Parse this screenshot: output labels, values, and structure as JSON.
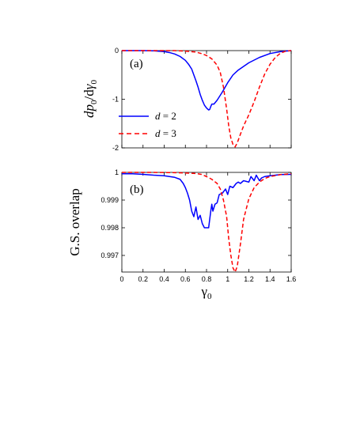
{
  "chart_data": [
    {
      "type": "line",
      "panel_label": "(a)",
      "ylabel_main": "dp",
      "ylabel_sub0": "0",
      "ylabel_mid": "/d",
      "ylabel_gamma": "γ",
      "ylabel_sub1": "0",
      "xlim": [
        0,
        1.6
      ],
      "ylim": [
        -2,
        0
      ],
      "x_ticks": [
        0,
        0.2,
        0.4,
        0.6,
        0.8,
        1,
        1.2,
        1.4,
        1.6
      ],
      "x_tick_labels": [],
      "y_ticks": [
        0,
        -1,
        -2
      ],
      "y_tick_labels": [
        "0",
        "-1",
        "-2"
      ],
      "legend_position": "lower-left",
      "series": [
        {
          "name": "d = 2",
          "legend_var": "d",
          "legend_rest": " = 2",
          "color": "#0000ff",
          "style": "solid",
          "x": [
            0,
            0.1,
            0.2,
            0.3,
            0.4,
            0.45,
            0.5,
            0.55,
            0.6,
            0.63,
            0.66,
            0.68,
            0.7,
            0.72,
            0.74,
            0.76,
            0.78,
            0.8,
            0.82,
            0.83,
            0.84,
            0.85,
            0.87,
            0.9,
            0.95,
            1.0,
            1.05,
            1.1,
            1.2,
            1.3,
            1.4,
            1.5,
            1.6
          ],
          "y": [
            0,
            0,
            0,
            -0.005,
            -0.02,
            -0.04,
            -0.07,
            -0.12,
            -0.2,
            -0.28,
            -0.38,
            -0.5,
            -0.62,
            -0.75,
            -0.9,
            -1.02,
            -1.12,
            -1.18,
            -1.22,
            -1.21,
            -1.15,
            -1.1,
            -1.1,
            -1.02,
            -0.85,
            -0.66,
            -0.5,
            -0.4,
            -0.25,
            -0.14,
            -0.06,
            -0.02,
            0
          ]
        },
        {
          "name": "d = 3",
          "legend_var": "d",
          "legend_rest": " = 3",
          "color": "#ff0000",
          "style": "dashed",
          "x": [
            0,
            0.3,
            0.5,
            0.6,
            0.7,
            0.75,
            0.8,
            0.85,
            0.9,
            0.93,
            0.96,
            0.99,
            1.01,
            1.03,
            1.05,
            1.07,
            1.09,
            1.12,
            1.15,
            1.2,
            1.25,
            1.3,
            1.35,
            1.4,
            1.45,
            1.5,
            1.55,
            1.6
          ],
          "y": [
            0,
            0,
            0,
            -0.01,
            -0.03,
            -0.06,
            -0.1,
            -0.17,
            -0.3,
            -0.45,
            -0.75,
            -1.2,
            -1.55,
            -1.8,
            -1.93,
            -1.98,
            -1.9,
            -1.72,
            -1.55,
            -1.32,
            -1.05,
            -0.75,
            -0.48,
            -0.28,
            -0.14,
            -0.05,
            -0.01,
            0
          ]
        }
      ]
    },
    {
      "type": "line",
      "panel_label": "(b)",
      "ylabel": "G.S. overlap",
      "xlabel": "γ",
      "xlabel_sub": "0",
      "xlim": [
        0,
        1.6
      ],
      "ylim": [
        0.9964,
        1.0
      ],
      "x_ticks": [
        0,
        0.2,
        0.4,
        0.6,
        0.8,
        1,
        1.2,
        1.4,
        1.6
      ],
      "x_tick_labels": [
        "0",
        "0.2",
        "0.4",
        "0.6",
        "0.8",
        "1",
        "1.2",
        "1.4",
        "1.6"
      ],
      "y_ticks": [
        1.0,
        0.999,
        0.998,
        0.997
      ],
      "y_tick_labels": [
        "1",
        "0.999",
        "0.998",
        "0.997"
      ],
      "series": [
        {
          "name": "d = 2",
          "color": "#0000ff",
          "style": "solid",
          "x": [
            0,
            0.1,
            0.2,
            0.3,
            0.4,
            0.45,
            0.5,
            0.55,
            0.58,
            0.6,
            0.62,
            0.64,
            0.66,
            0.68,
            0.7,
            0.72,
            0.74,
            0.76,
            0.78,
            0.8,
            0.82,
            0.84,
            0.85,
            0.86,
            0.88,
            0.9,
            0.92,
            0.95,
            0.98,
            1.0,
            1.02,
            1.05,
            1.08,
            1.1,
            1.12,
            1.15,
            1.2,
            1.22,
            1.25,
            1.27,
            1.3,
            1.32,
            1.35,
            1.4,
            1.45,
            1.5,
            1.6
          ],
          "y": [
            0.99995,
            0.99995,
            0.99993,
            0.9999,
            0.99988,
            0.99985,
            0.99982,
            0.99975,
            0.9996,
            0.99945,
            0.99925,
            0.999,
            0.9986,
            0.9984,
            0.99875,
            0.9983,
            0.99845,
            0.99815,
            0.998,
            0.998,
            0.998,
            0.9986,
            0.99885,
            0.9986,
            0.99885,
            0.9989,
            0.9992,
            0.99925,
            0.9994,
            0.9992,
            0.9995,
            0.99945,
            0.9996,
            0.99965,
            0.9996,
            0.9997,
            0.99965,
            0.99985,
            0.9997,
            0.9999,
            0.9997,
            0.9998,
            0.99985,
            0.99988,
            0.9999,
            0.99992,
            0.99993
          ]
        },
        {
          "name": "d = 3",
          "color": "#ff0000",
          "style": "dashed",
          "x": [
            0,
            0.3,
            0.5,
            0.6,
            0.7,
            0.75,
            0.8,
            0.85,
            0.9,
            0.93,
            0.96,
            0.99,
            1.01,
            1.03,
            1.05,
            1.07,
            1.09,
            1.12,
            1.15,
            1.2,
            1.25,
            1.3,
            1.35,
            1.4,
            1.5,
            1.6
          ],
          "y": [
            1.0,
            1.0,
            0.99999,
            0.99998,
            0.99996,
            0.99993,
            0.99985,
            0.99975,
            0.9996,
            0.9994,
            0.999,
            0.9984,
            0.9976,
            0.997,
            0.99655,
            0.9964,
            0.9966,
            0.9974,
            0.9983,
            0.99905,
            0.99945,
            0.99965,
            0.99978,
            0.99985,
            0.99992,
            0.99995
          ]
        }
      ]
    }
  ]
}
